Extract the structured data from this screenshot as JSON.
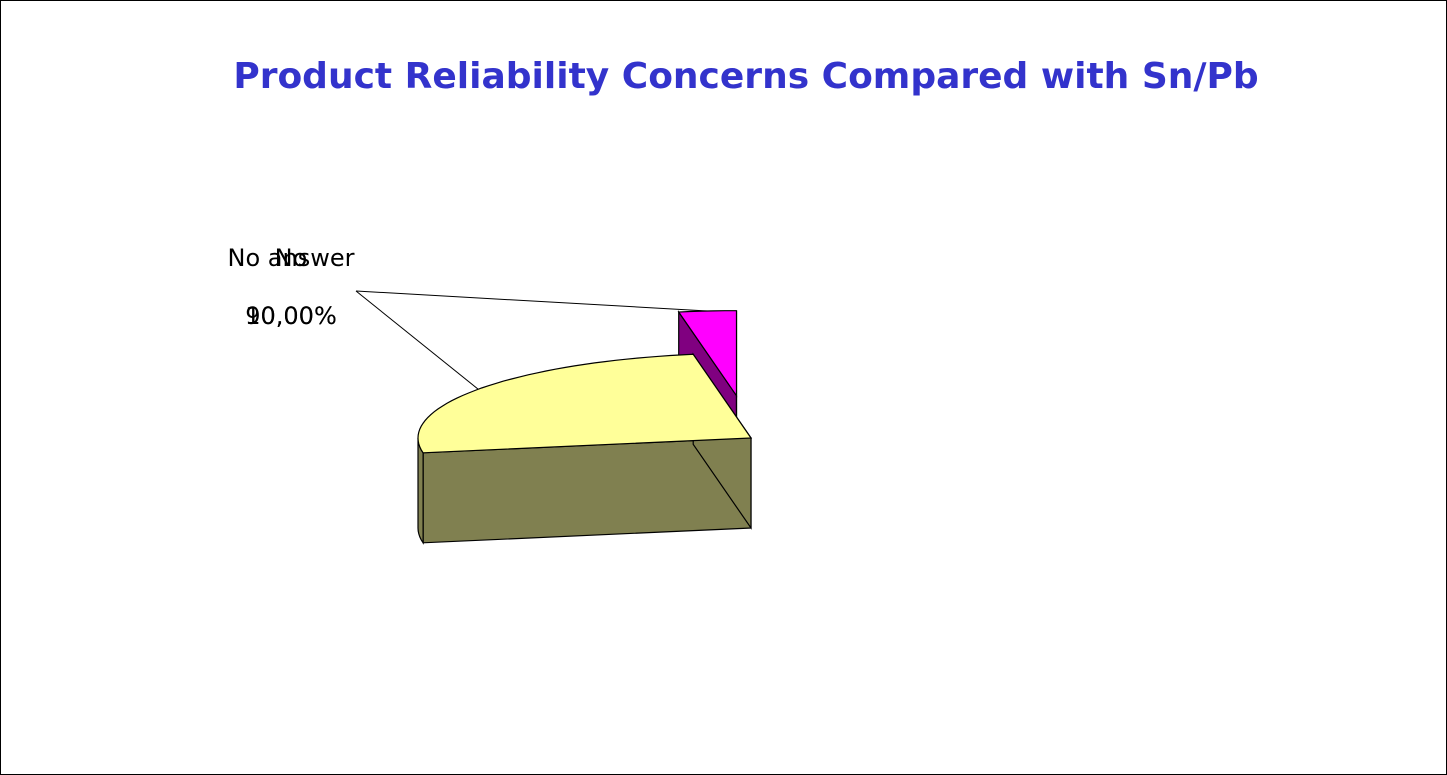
{
  "chart_data": {
    "type": "pie3d",
    "title": "Product Reliability Concerns Compared with Sn/Pb",
    "categories": [
      "No",
      "No answer"
    ],
    "values": [
      10,
      90
    ],
    "value_labels": [
      "10,00%",
      "90,00%"
    ],
    "colors": [
      "#ff00ff",
      "#ffff99"
    ],
    "side_colors": [
      "#800080",
      "#808050"
    ],
    "exploded": [
      true,
      false
    ]
  }
}
